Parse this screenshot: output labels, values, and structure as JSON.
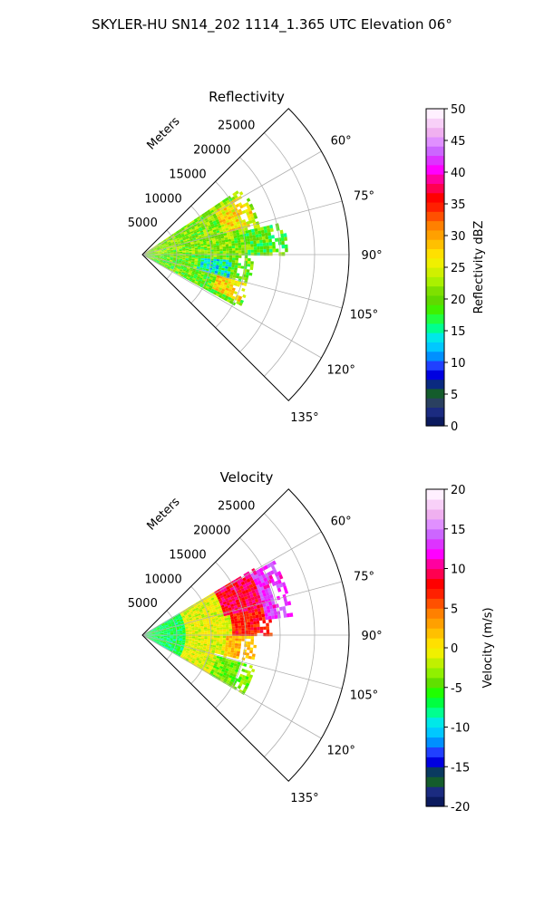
{
  "figure": {
    "suptitle": "SKYLER-HU  SN14_202  1114_1.365 UTC Elevation 06°"
  },
  "chart_data": [
    {
      "type": "heatmap",
      "projection": "polar-sector",
      "title": "Reflectivity",
      "radial_label": "Meters",
      "radial_ticks": [
        5000,
        10000,
        15000,
        20000,
        25000
      ],
      "radial_range": [
        0,
        30000
      ],
      "angular_ticks_deg": [
        60,
        75,
        90,
        105,
        120,
        135
      ],
      "angular_tick_labels": [
        "60°",
        "75°",
        "90°",
        "105°",
        "120°",
        "135°"
      ],
      "angular_range_deg": [
        45,
        135
      ],
      "grid": true,
      "colorbar": {
        "label": "Reflectivity dBZ",
        "range": [
          0,
          50
        ],
        "ticks": [
          0,
          5,
          10,
          15,
          20,
          25,
          30,
          35,
          40,
          45,
          50
        ],
        "palette": [
          "#0b1a5e",
          "#1b2b80",
          "#2a4060",
          "#145c2c",
          "#0a2a80",
          "#0000e0",
          "#2040ff",
          "#0090ff",
          "#00c8ff",
          "#00e8e8",
          "#00ff90",
          "#20ff40",
          "#40f000",
          "#60d800",
          "#7ee000",
          "#aaf000",
          "#d0f000",
          "#f0f000",
          "#ffe000",
          "#ffc000",
          "#ffa000",
          "#ff8000",
          "#ff5000",
          "#ff2000",
          "#ff0000",
          "#ff0050",
          "#ff00a0",
          "#ff00ff",
          "#dd33ff",
          "#cc66ff",
          "#e090ff",
          "#f0b0f0",
          "#f8d0f8",
          "#fff0ff"
        ]
      },
      "echo_regions": [
        {
          "az_deg": [
            56,
            90
          ],
          "range_m": [
            0,
            17500
          ],
          "value_dbz": 21
        },
        {
          "az_deg": [
            90,
            118
          ],
          "range_m": [
            0,
            16000
          ],
          "value_dbz": 20
        },
        {
          "az_deg": [
            58,
            75
          ],
          "range_m": [
            12000,
            17000
          ],
          "value_dbz": 27
        },
        {
          "az_deg": [
            105,
            115
          ],
          "range_m": [
            11000,
            15500
          ],
          "value_dbz": 27
        },
        {
          "az_deg": [
            76,
            90
          ],
          "range_m": [
            15000,
            21000
          ],
          "value_dbz": 19
        },
        {
          "az_deg": [
            93,
            105
          ],
          "range_m": [
            8000,
            13000
          ],
          "value_dbz": 15
        }
      ]
    },
    {
      "type": "heatmap",
      "projection": "polar-sector",
      "title": "Velocity",
      "radial_label": "Meters",
      "radial_ticks": [
        5000,
        10000,
        15000,
        20000,
        25000
      ],
      "radial_range": [
        0,
        30000
      ],
      "angular_ticks_deg": [
        60,
        75,
        90,
        105,
        120,
        135
      ],
      "angular_tick_labels": [
        "60°",
        "75°",
        "90°",
        "105°",
        "120°",
        "135°"
      ],
      "angular_range_deg": [
        45,
        135
      ],
      "grid": true,
      "colorbar": {
        "label": "Velocity (m/s)",
        "range": [
          -20,
          20
        ],
        "ticks": [
          -20,
          -15,
          -10,
          -5,
          0,
          5,
          10,
          15,
          20
        ],
        "palette": [
          "#0b1a5e",
          "#1b2b80",
          "#145c2c",
          "#0a3a60",
          "#0000e0",
          "#2040ff",
          "#0090ff",
          "#00c8ff",
          "#00e8e8",
          "#00ff90",
          "#00ff40",
          "#20ff00",
          "#60e000",
          "#90f000",
          "#c0f000",
          "#f0f000",
          "#ffe000",
          "#ffc000",
          "#ffa000",
          "#ff8000",
          "#ff5000",
          "#ff2000",
          "#ff0000",
          "#ff0050",
          "#ff00a0",
          "#ff00ff",
          "#dd33ff",
          "#cc66ff",
          "#e090ff",
          "#f0b0f0",
          "#f8d0f8",
          "#fff0ff"
        ]
      },
      "echo_regions": [
        {
          "az_deg": [
            58,
            120
          ],
          "range_m": [
            0,
            6000
          ],
          "value_ms": -7
        },
        {
          "az_deg": [
            58,
            120
          ],
          "range_m": [
            6000,
            13000
          ],
          "value_ms": -1
        },
        {
          "az_deg": [
            105,
            120
          ],
          "range_m": [
            11000,
            17000
          ],
          "value_ms": -4
        },
        {
          "az_deg": [
            58,
            76
          ],
          "range_m": [
            12000,
            18500
          ],
          "value_ms": 9
        },
        {
          "az_deg": [
            76,
            90
          ],
          "range_m": [
            13000,
            18500
          ],
          "value_ms": 7
        },
        {
          "az_deg": [
            90,
            104
          ],
          "range_m": [
            12000,
            16500
          ],
          "value_ms": 2
        },
        {
          "az_deg": [
            60,
            82
          ],
          "range_m": [
            18000,
            22000
          ],
          "value_ms": 13
        }
      ]
    }
  ]
}
